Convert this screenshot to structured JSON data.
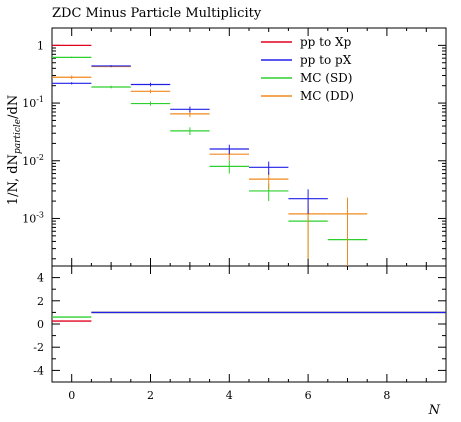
{
  "chart_data": [
    {
      "type": "histogram-errorbar",
      "panel": "main",
      "title": "ZDC Minus Particle Multiplicity",
      "ylabel": "1/N, dN_particle/dN",
      "yscale": "log",
      "ylim": [
        0.00015,
        2.0
      ],
      "xlim": [
        -0.5,
        9.5
      ],
      "y_tick_labels": [
        "10^-3",
        "10^-2",
        "10^-1",
        "1"
      ],
      "legend_position": "top-right",
      "series": [
        {
          "name": "pp to Xp",
          "color": "#e0001c",
          "bins": [
            {
              "xlo": -0.5,
              "xhi": 0.5,
              "y": 1.0,
              "err": 0.02
            }
          ]
        },
        {
          "name": "pp to pX",
          "color": "#2020e8",
          "bins": [
            {
              "xlo": -0.5,
              "xhi": 0.5,
              "y": 0.22,
              "err": 0.01
            },
            {
              "xlo": 0.5,
              "xhi": 1.5,
              "y": 0.44,
              "err": 0.015
            },
            {
              "xlo": 1.5,
              "xhi": 2.5,
              "y": 0.21,
              "err": 0.015
            },
            {
              "xlo": 2.5,
              "xhi": 3.5,
              "y": 0.078,
              "err": 0.009
            },
            {
              "xlo": 3.5,
              "xhi": 4.5,
              "y": 0.016,
              "err": 0.003
            },
            {
              "xlo": 4.5,
              "xhi": 5.5,
              "y": 0.0077,
              "err": 0.002
            },
            {
              "xlo": 5.5,
              "xhi": 6.5,
              "y": 0.0022,
              "err": 0.001
            }
          ]
        },
        {
          "name": "MC (SD)",
          "color": "#2ed02e",
          "bins": [
            {
              "xlo": -0.5,
              "xhi": 0.5,
              "y": 0.62,
              "err": 0.02
            },
            {
              "xlo": 0.5,
              "xhi": 1.5,
              "y": 0.19,
              "err": 0.01
            },
            {
              "xlo": 1.5,
              "xhi": 2.5,
              "y": 0.098,
              "err": 0.008
            },
            {
              "xlo": 2.5,
              "xhi": 3.5,
              "y": 0.033,
              "err": 0.005
            },
            {
              "xlo": 3.5,
              "xhi": 4.5,
              "y": 0.008,
              "err": 0.002
            },
            {
              "xlo": 4.5,
              "xhi": 5.5,
              "y": 0.003,
              "err": 0.001
            },
            {
              "xlo": 5.5,
              "xhi": 6.5,
              "y": 0.0009,
              "err": 0.0007
            },
            {
              "xlo": 6.5,
              "xhi": 7.5,
              "y": 0.00043,
              "err": 0.0003
            }
          ]
        },
        {
          "name": "MC (DD)",
          "color": "#f08a1e",
          "bins": [
            {
              "xlo": -0.5,
              "xhi": 0.5,
              "y": 0.28,
              "err": 0.02
            },
            {
              "xlo": 0.5,
              "xhi": 1.5,
              "y": 0.43,
              "err": 0.015
            },
            {
              "xlo": 1.5,
              "xhi": 2.5,
              "y": 0.16,
              "err": 0.012
            },
            {
              "xlo": 2.5,
              "xhi": 3.5,
              "y": 0.065,
              "err": 0.008
            },
            {
              "xlo": 3.5,
              "xhi": 4.5,
              "y": 0.013,
              "err": 0.003
            },
            {
              "xlo": 4.5,
              "xhi": 5.5,
              "y": 0.0048,
              "err": 0.0016
            },
            {
              "xlo": 5.5,
              "xhi": 6.5,
              "y": 0.0012,
              "err": 0.001
            },
            {
              "xlo": 6.5,
              "xhi": 7.5,
              "y": 0.0012,
              "err": 0.0011
            }
          ]
        }
      ]
    },
    {
      "type": "ratio",
      "panel": "ratio",
      "xlabel": "N",
      "xlim": [
        -0.5,
        9.5
      ],
      "ylim": [
        -5,
        5
      ],
      "x_ticks": [
        0,
        2,
        4,
        6,
        8
      ],
      "y_ticks": [
        -4,
        -2,
        0,
        2,
        4
      ],
      "series": [
        {
          "name": "pp to Xp",
          "color": "#e0001c",
          "segments": [
            {
              "xlo": -0.5,
              "xhi": 0.5,
              "y": 0.25
            }
          ]
        },
        {
          "name": "MC (SD)",
          "color": "#2ed02e",
          "segments": [
            {
              "xlo": -0.5,
              "xhi": 0.5,
              "y": 0.6
            },
            {
              "xlo": 0.5,
              "xhi": 9.5,
              "y": 1.0
            }
          ]
        },
        {
          "name": "MC (DD)",
          "color": "#f08a1e",
          "segments": [
            {
              "xlo": 0.5,
              "xhi": 9.5,
              "y": 1.0
            }
          ]
        },
        {
          "name": "pp to pX",
          "color": "#2020e8",
          "segments": [
            {
              "xlo": 0.5,
              "xhi": 9.5,
              "y": 1.0
            }
          ]
        }
      ]
    }
  ]
}
